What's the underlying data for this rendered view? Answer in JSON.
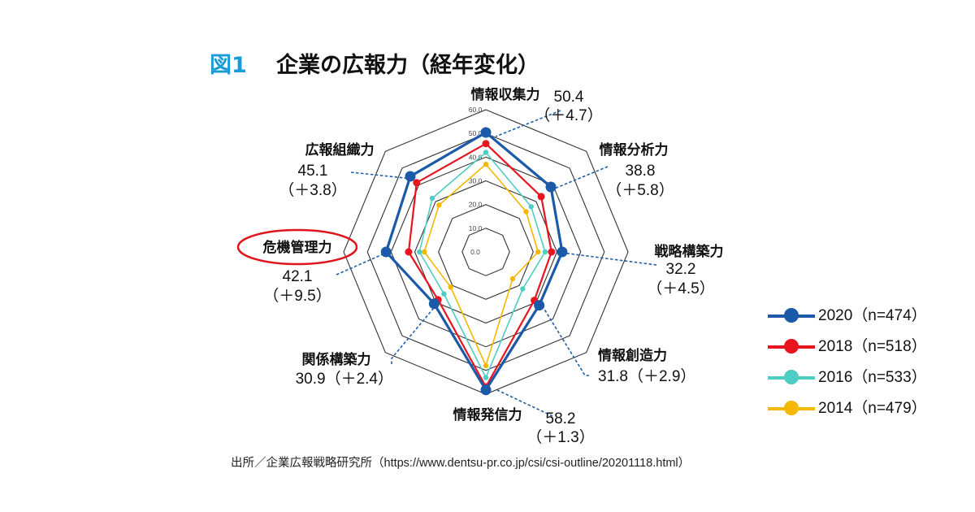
{
  "figure": {
    "label": "図1",
    "title": "企業の広報力（経年変化）",
    "source": "出所／企業広報戦略研究所（https://www.dentsu-pr.co.jp/csi/csi-outline/20201118.html）"
  },
  "colors": {
    "grid": "#333333",
    "callout": "#1f5fa8",
    "highlight_ring": "#e0141e",
    "label_accent": "#1a9bd7"
  },
  "chart_data": {
    "type": "radar",
    "axes": [
      "情報収集力",
      "情報分析力",
      "戦略構築力",
      "情報創造力",
      "情報発信力",
      "関係構築力",
      "危機管理力",
      "広報組織力"
    ],
    "rlim": [
      0,
      60
    ],
    "ticks": [
      "0.0",
      "10.0",
      "20.0",
      "30.0",
      "40.0",
      "50.0",
      "60.0"
    ],
    "grid": true,
    "legend_position": "right",
    "highlighted_axis": "危機管理力",
    "series": [
      {
        "name": "2020（n=474）",
        "color": "#1a5aa8",
        "values": [
          50.4,
          38.8,
          32.2,
          31.8,
          58.2,
          30.9,
          42.1,
          45.1
        ]
      },
      {
        "name": "2018（n=518）",
        "color": "#e8141e",
        "values": [
          45.7,
          33.0,
          27.7,
          28.9,
          56.9,
          28.5,
          32.6,
          41.3
        ]
      },
      {
        "name": "2016（n=533）",
        "color": "#4ecdc4",
        "values": [
          42.0,
          27.0,
          25.0,
          22.0,
          53.0,
          25.0,
          28.0,
          32.0
        ]
      },
      {
        "name": "2014（n=479）",
        "color": "#f5b800",
        "values": [
          37.0,
          24.0,
          22.0,
          16.0,
          48.0,
          21.0,
          26.0,
          28.0
        ]
      }
    ],
    "annotations": [
      {
        "axis": "情報収集力",
        "value": "50.4",
        "change": "（＋4.7）"
      },
      {
        "axis": "情報分析力",
        "value": "38.8",
        "change": "（＋5.8）"
      },
      {
        "axis": "戦略構築力",
        "value": "32.2",
        "change": "（＋4.5）"
      },
      {
        "axis": "情報創造力",
        "value": "31.8",
        "change": "（＋2.9）"
      },
      {
        "axis": "情報発信力",
        "value": "58.2",
        "change": "（＋1.3）"
      },
      {
        "axis": "関係構築力",
        "value": "30.9",
        "change": "（＋2.4）"
      },
      {
        "axis": "危機管理力",
        "value": "42.1",
        "change": "（＋9.5）"
      },
      {
        "axis": "広報組織力",
        "value": "45.1",
        "change": "（＋3.8）"
      }
    ]
  }
}
